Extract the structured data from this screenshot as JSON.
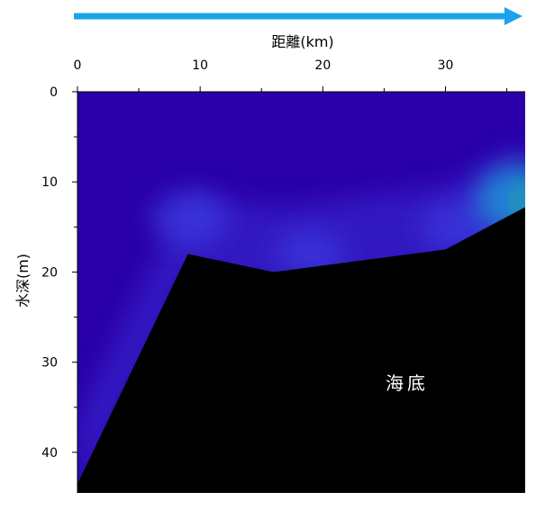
{
  "colors": {
    "arrow": "#1aa3e8",
    "water_base": "#2a00a8",
    "seabed": "#000000",
    "axis": "#000000"
  },
  "chart_data": {
    "type": "heatmap",
    "title": "",
    "xlabel": "距離(km)",
    "ylabel": "水深(m)",
    "x_axis_position": "top",
    "xlim": [
      0,
      36.5
    ],
    "ylim": [
      0,
      44.5
    ],
    "y_inverted": true,
    "x_ticks": [
      0,
      10,
      20,
      30
    ],
    "x_minor_ticks": [
      5,
      15,
      25,
      35
    ],
    "y_ticks": [
      0,
      10,
      20,
      30,
      40
    ],
    "y_minor_ticks": [
      5,
      15,
      25,
      35
    ],
    "arrow_direction": "right",
    "seabed_label": "海底",
    "seabed_profile": [
      {
        "x": 0,
        "y": 43.5
      },
      {
        "x": 9,
        "y": 18
      },
      {
        "x": 16,
        "y": 20
      },
      {
        "x": 30,
        "y": 17.5
      },
      {
        "x": 36.5,
        "y": 12.8
      }
    ],
    "highlights": [
      {
        "x": 9,
        "y": 14,
        "intensity": 0.55
      },
      {
        "x": 19,
        "y": 18,
        "intensity": 0.4
      },
      {
        "x": 31,
        "y": 15,
        "intensity": 0.45
      },
      {
        "x": 36.5,
        "y": 12,
        "intensity": 1.0
      }
    ]
  }
}
